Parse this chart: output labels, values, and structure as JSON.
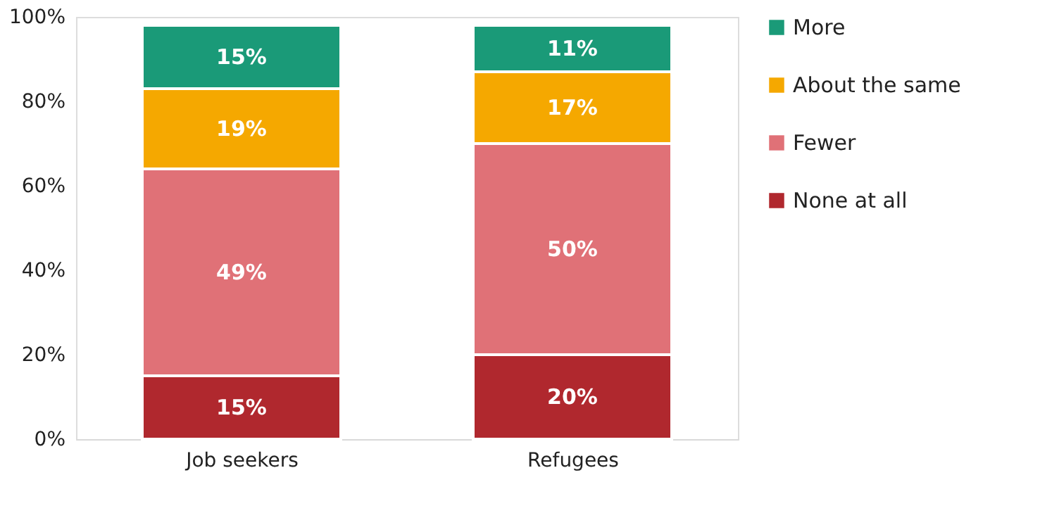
{
  "chart_data": {
    "type": "bar",
    "stacked": true,
    "categories": [
      "Job seekers",
      "Refugees"
    ],
    "series": [
      {
        "name": "None at all",
        "color": "#b0282e",
        "values": [
          15,
          20
        ]
      },
      {
        "name": "Fewer",
        "color": "#e07177",
        "values": [
          49,
          50
        ]
      },
      {
        "name": "About the same",
        "color": "#f5a800",
        "values": [
          19,
          17
        ]
      },
      {
        "name": "More",
        "color": "#1a9a78",
        "values": [
          15,
          11
        ]
      }
    ],
    "ylim": [
      0,
      100
    ],
    "yticks": [
      {
        "value": 0,
        "label": "0%"
      },
      {
        "value": 20,
        "label": "20%"
      },
      {
        "value": 40,
        "label": "40%"
      },
      {
        "value": 60,
        "label": "60%"
      },
      {
        "value": 80,
        "label": "80%"
      },
      {
        "value": 100,
        "label": "100%"
      }
    ],
    "value_labels": [
      [
        "15%",
        "20%"
      ],
      [
        "49%",
        "50%"
      ],
      [
        "19%",
        "17%"
      ],
      [
        "15%",
        "11%"
      ]
    ],
    "grid": false,
    "legend": "right"
  }
}
